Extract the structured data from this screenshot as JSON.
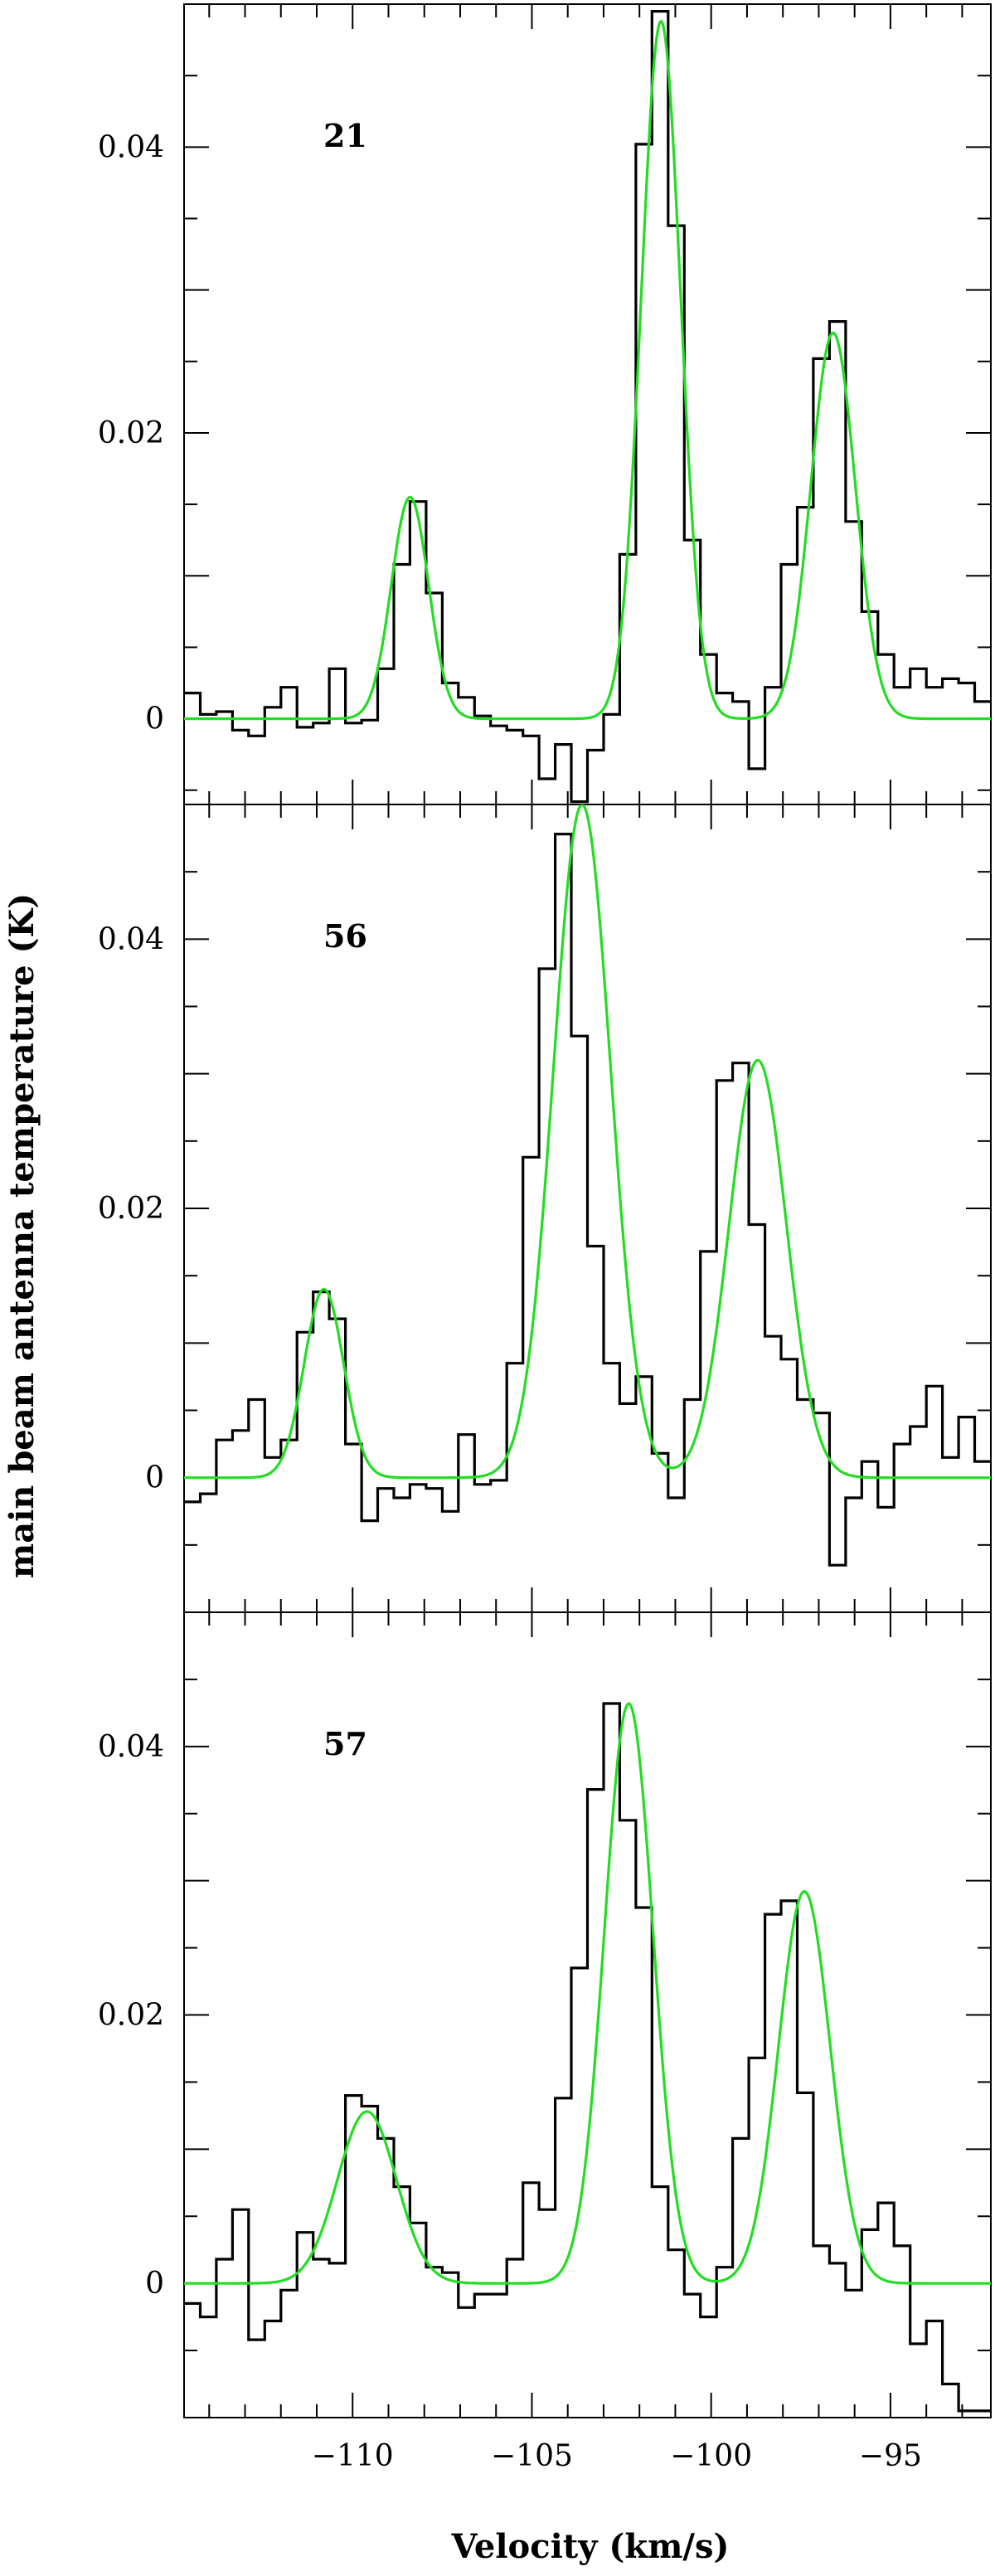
{
  "chart_data": {
    "type": "line",
    "xlabel": "Velocity (km/s)",
    "ylabel": "main beam antenna temperature (K)",
    "xlim": [
      -114.7,
      -92.2
    ],
    "x_ticks": [
      -110,
      -105,
      -100,
      -95
    ],
    "x_tick_labels": [
      "−110",
      "−105",
      "−100",
      "−95"
    ],
    "y_ticks": [
      0,
      0.02,
      0.04
    ],
    "y_tick_labels": [
      "0",
      "0.02",
      "0.04"
    ],
    "grid": false,
    "line_colors": {
      "observed": "#000000",
      "fit": "#22dd22"
    },
    "panels": [
      {
        "label": "21",
        "ylim": [
          -0.006,
          0.05
        ],
        "bin_width": 0.45,
        "x_start": -114.7,
        "observed": [
          0.0018,
          0.0003,
          0.0005,
          -0.0008,
          -0.0012,
          0.0008,
          0.0022,
          -0.0006,
          -0.0003,
          0.0035,
          -0.0003,
          -0.0001,
          0.0035,
          0.0108,
          0.0152,
          0.0088,
          0.0025,
          0.0015,
          0.0002,
          -0.0005,
          -0.0008,
          -0.0012,
          -0.0042,
          -0.0018,
          -0.0058,
          -0.0022,
          0.0003,
          0.0115,
          0.0402,
          0.0495,
          0.0345,
          0.0125,
          0.0045,
          0.0018,
          0.0012,
          -0.0035,
          0.0022,
          0.0108,
          0.0148,
          0.0252,
          0.0278,
          0.0138,
          0.0075,
          0.0045,
          0.0022,
          0.0035,
          0.0022,
          0.0028,
          0.0025,
          0.0012
        ],
        "fit_components": [
          {
            "amp": 0.0155,
            "center": -108.4,
            "sigma": 0.52
          },
          {
            "amp": 0.0488,
            "center": -101.4,
            "sigma": 0.55
          },
          {
            "amp": 0.027,
            "center": -96.6,
            "sigma": 0.62
          }
        ]
      },
      {
        "label": "56",
        "ylim": [
          -0.01,
          0.05
        ],
        "bin_width": 0.45,
        "x_start": -114.7,
        "observed": [
          -0.0018,
          -0.0012,
          0.0028,
          0.0035,
          0.0058,
          0.0015,
          0.0028,
          0.0108,
          0.0138,
          0.0118,
          0.0025,
          -0.0032,
          -0.0008,
          -0.0015,
          -0.0005,
          -0.0008,
          -0.0025,
          0.0032,
          -0.0005,
          -0.0002,
          0.0085,
          0.0238,
          0.0378,
          0.0478,
          0.0328,
          0.0172,
          0.0085,
          0.0055,
          0.0075,
          0.0018,
          -0.0015,
          0.0058,
          0.0168,
          0.0295,
          0.0308,
          0.0188,
          0.0105,
          0.0088,
          0.0058,
          0.0048,
          -0.0065,
          -0.0015,
          0.0012,
          -0.0022,
          0.0025,
          0.0038,
          0.0068,
          0.0015,
          0.0045,
          0.0012
        ],
        "fit_components": [
          {
            "amp": 0.014,
            "center": -110.8,
            "sigma": 0.55
          },
          {
            "amp": 0.05,
            "center": -103.6,
            "sigma": 0.8
          },
          {
            "amp": 0.031,
            "center": -98.7,
            "sigma": 0.8
          }
        ]
      },
      {
        "label": "57",
        "ylim": [
          -0.01,
          0.05
        ],
        "bin_width": 0.45,
        "x_start": -114.7,
        "observed": [
          -0.0015,
          -0.0025,
          0.0018,
          0.0055,
          -0.0042,
          -0.0028,
          -0.0005,
          0.0038,
          0.0018,
          0.0015,
          0.014,
          0.0132,
          0.0108,
          0.0072,
          0.0045,
          0.0012,
          0.0008,
          -0.0018,
          -0.0008,
          -0.0008,
          0.0018,
          0.0075,
          0.0055,
          0.0138,
          0.0235,
          0.0368,
          0.0432,
          0.0345,
          0.028,
          0.0072,
          0.0025,
          -0.0008,
          -0.0025,
          0.0012,
          0.0108,
          0.0168,
          0.0275,
          0.0285,
          0.0142,
          0.0028,
          0.0015,
          -0.0005,
          0.004,
          0.006,
          0.0028,
          -0.0045,
          -0.0028,
          -0.0075,
          -0.0095,
          -0.0095
        ],
        "fit_components": [
          {
            "amp": 0.0128,
            "center": -109.6,
            "sigma": 0.82
          },
          {
            "amp": 0.0432,
            "center": -102.3,
            "sigma": 0.68
          },
          {
            "amp": 0.0292,
            "center": -97.4,
            "sigma": 0.72
          }
        ]
      }
    ]
  }
}
